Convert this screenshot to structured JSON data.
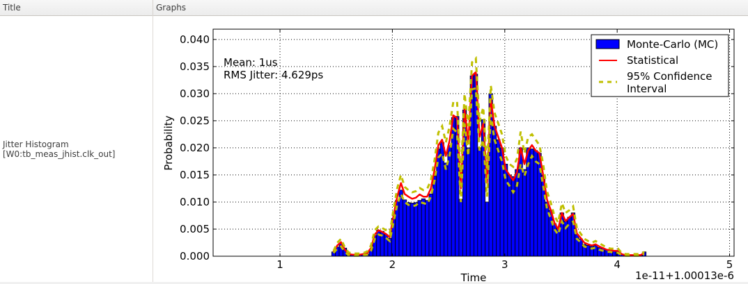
{
  "table": {
    "columns": [
      {
        "label": "Title"
      },
      {
        "label": "Graphs"
      }
    ],
    "rows": [
      {
        "title_line1": "Jitter Histogram",
        "title_line2": "[W0:tb_meas_jhist.clk_out]"
      }
    ]
  },
  "chart_data": {
    "type": "bar",
    "title": "",
    "xlabel": "Time",
    "ylabel": "Probability",
    "x_offset_label": "1e-11+1.00013e-6",
    "xlim": [
      0.405,
      5.04
    ],
    "ylim": [
      0.0,
      0.0419
    ],
    "xticks": [
      1,
      2,
      3,
      4,
      5
    ],
    "xtick_labels": [
      "1",
      "2",
      "3",
      "4",
      "5"
    ],
    "yticks": [
      0.0,
      0.005,
      0.01,
      0.015,
      0.02,
      0.025,
      0.03,
      0.035,
      0.04
    ],
    "ytick_labels": [
      "0.000",
      "0.005",
      "0.010",
      "0.015",
      "0.020",
      "0.025",
      "0.030",
      "0.035",
      "0.040"
    ],
    "grid": true,
    "legend_position": "upper right",
    "annotations": [
      "Mean: 1us",
      "RMS Jitter: 4.629ps"
    ],
    "bin_start": 1.46,
    "bin_width": 0.0333,
    "series": [
      {
        "name": "Monte-Carlo (MC)",
        "kind": "bar",
        "color": "#0000ff",
        "values": [
          0.0008,
          0.0017,
          0.0024,
          0.0015,
          0.0005,
          0.0003,
          0.0003,
          0.0003,
          0.0004,
          0.0004,
          0.0012,
          0.0038,
          0.0048,
          0.0046,
          0.004,
          0.0033,
          0.007,
          0.0103,
          0.0122,
          0.0104,
          0.0099,
          0.0098,
          0.0099,
          0.0103,
          0.0106,
          0.0103,
          0.0115,
          0.0148,
          0.0198,
          0.021,
          0.0172,
          0.0204,
          0.0256,
          0.0258,
          0.0105,
          0.027,
          0.02,
          0.0333,
          0.0336,
          0.02,
          0.0252,
          0.01,
          0.03,
          0.024,
          0.0215,
          0.02,
          0.017,
          0.015,
          0.0147,
          0.016,
          0.02,
          0.016,
          0.02,
          0.0198,
          0.0195,
          0.019,
          0.015,
          0.01,
          0.0085,
          0.006,
          0.0052,
          0.008,
          0.0065,
          0.0072,
          0.008,
          0.004,
          0.0032,
          0.0022,
          0.002,
          0.0018,
          0.002,
          0.0016,
          0.0014,
          0.0012,
          0.001,
          0.001,
          0.001,
          0.0004,
          0.0002,
          0.0002,
          0.0002,
          0.0002,
          0.0002,
          0.0008
        ]
      },
      {
        "name": "Statistical",
        "kind": "line",
        "color": "#ff0000",
        "values": [
          0.0008,
          0.002,
          0.0026,
          0.0012,
          0.0004,
          0.0003,
          0.0003,
          0.0003,
          0.0004,
          0.0006,
          0.0015,
          0.004,
          0.0048,
          0.0045,
          0.0041,
          0.0035,
          0.0074,
          0.011,
          0.0135,
          0.0115,
          0.011,
          0.0106,
          0.0108,
          0.0114,
          0.011,
          0.011,
          0.0125,
          0.016,
          0.0205,
          0.0215,
          0.0185,
          0.0213,
          0.026,
          0.0255,
          0.0125,
          0.0272,
          0.021,
          0.0333,
          0.034,
          0.022,
          0.0245,
          0.0135,
          0.029,
          0.024,
          0.022,
          0.02,
          0.016,
          0.015,
          0.014,
          0.0155,
          0.02,
          0.017,
          0.0195,
          0.0205,
          0.0195,
          0.019,
          0.015,
          0.0105,
          0.0086,
          0.0062,
          0.005,
          0.008,
          0.0065,
          0.0072,
          0.0078,
          0.0042,
          0.0034,
          0.0025,
          0.0022,
          0.002,
          0.0022,
          0.0018,
          0.0015,
          0.0012,
          0.0011,
          0.001,
          0.001,
          0.0004,
          0.0002,
          0.0002,
          0.0002,
          0.0002,
          0.0002,
          0.0006
        ]
      },
      {
        "name": "95% Confidence Interval",
        "kind": "dashed-line-pair",
        "color": "#bfbf00",
        "upper": [
          0.001,
          0.0025,
          0.0032,
          0.0016,
          0.0007,
          0.0005,
          0.0005,
          0.0005,
          0.0006,
          0.0009,
          0.002,
          0.0048,
          0.0055,
          0.0052,
          0.0048,
          0.0042,
          0.0085,
          0.0125,
          0.015,
          0.0128,
          0.0122,
          0.0118,
          0.012,
          0.0126,
          0.0122,
          0.0124,
          0.014,
          0.0178,
          0.0228,
          0.024,
          0.021,
          0.024,
          0.0285,
          0.0285,
          0.0145,
          0.03,
          0.024,
          0.0358,
          0.0365,
          0.0248,
          0.0275,
          0.016,
          0.0315,
          0.0265,
          0.0245,
          0.0225,
          0.0185,
          0.017,
          0.0165,
          0.018,
          0.023,
          0.019,
          0.022,
          0.0225,
          0.0215,
          0.0205,
          0.017,
          0.012,
          0.01,
          0.0075,
          0.0062,
          0.0098,
          0.008,
          0.0085,
          0.0092,
          0.0052,
          0.0042,
          0.0032,
          0.0028,
          0.0025,
          0.0028,
          0.0024,
          0.002,
          0.0016,
          0.0014,
          0.0014,
          0.0014,
          0.0006,
          0.0004,
          0.0004,
          0.0004,
          0.0004,
          0.0004,
          0.0008
        ],
        "lower": [
          0.0006,
          0.0014,
          0.0018,
          0.0008,
          0.0002,
          0.0001,
          0.0001,
          0.0001,
          0.0002,
          0.0003,
          0.001,
          0.0032,
          0.004,
          0.0038,
          0.0034,
          0.0028,
          0.0062,
          0.0095,
          0.0115,
          0.01,
          0.0095,
          0.0092,
          0.0094,
          0.01,
          0.0098,
          0.0096,
          0.011,
          0.014,
          0.0182,
          0.019,
          0.016,
          0.0186,
          0.0235,
          0.0228,
          0.01,
          0.0245,
          0.0185,
          0.0308,
          0.031,
          0.0195,
          0.0215,
          0.011,
          0.0262,
          0.0215,
          0.0195,
          0.0175,
          0.014,
          0.013,
          0.0118,
          0.013,
          0.017,
          0.0148,
          0.017,
          0.0185,
          0.0175,
          0.017,
          0.013,
          0.0088,
          0.007,
          0.005,
          0.004,
          0.0064,
          0.0052,
          0.006,
          0.0064,
          0.0032,
          0.0026,
          0.0018,
          0.0016,
          0.0014,
          0.0016,
          0.0012,
          0.001,
          0.0008,
          0.0008,
          0.0006,
          0.0006,
          0.0002,
          0.0001,
          0.0001,
          0.0001,
          0.0001,
          0.0001,
          0.0004
        ]
      }
    ]
  },
  "legend": {
    "items": [
      {
        "label": "Monte-Carlo (MC)",
        "color": "#0000ff"
      },
      {
        "label": "Statistical",
        "color": "#ff0000"
      },
      {
        "label_line1": "95% Confidence",
        "label_line2": "Interval",
        "color": "#bfbf00"
      }
    ]
  },
  "annotation": {
    "mean": "Mean: 1us",
    "rms": "RMS Jitter: 4.629ps"
  },
  "axes": {
    "xlabel": "Time",
    "ylabel": "Probability",
    "offset": "1e-11+1.00013e-6"
  }
}
